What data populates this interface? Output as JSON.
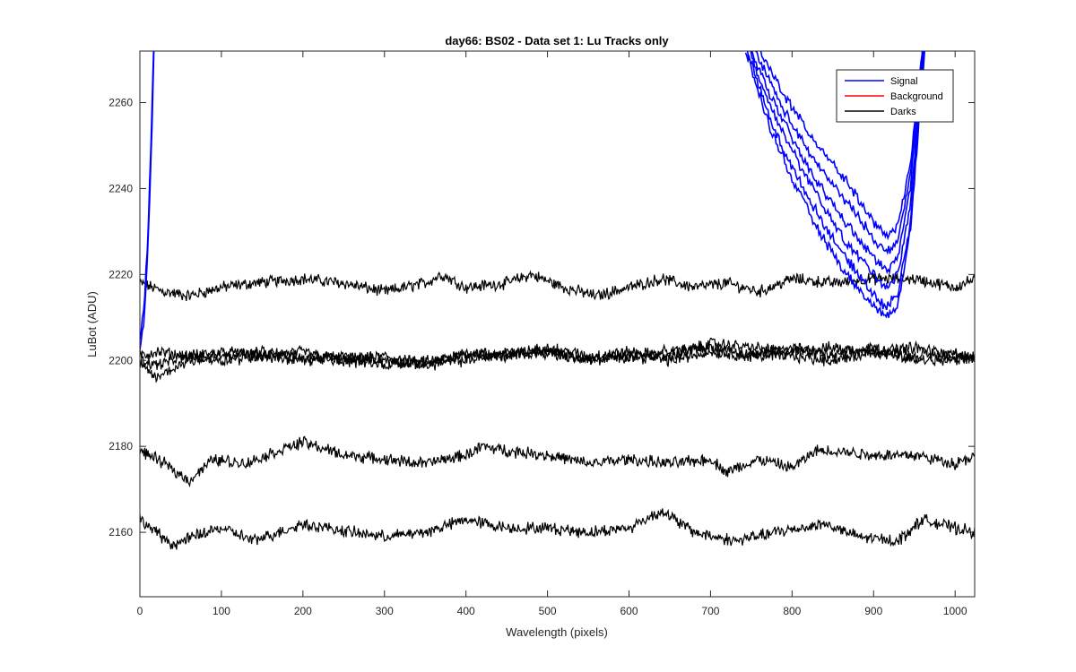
{
  "chart_data": {
    "type": "line",
    "title": "day66: BS02 - Data set 1: Lu Tracks only",
    "xlabel": "Wavelength (pixels)",
    "ylabel": "LuBot (ADU)",
    "xlim": [
      0,
      1024
    ],
    "ylim": [
      2145,
      2272
    ],
    "xticks": [
      0,
      100,
      200,
      300,
      400,
      500,
      600,
      700,
      800,
      900,
      1000
    ],
    "yticks": [
      2160,
      2180,
      2200,
      2220,
      2240,
      2260
    ],
    "grid": false,
    "legend_position": "top-right",
    "legend": [
      {
        "label": "Signal",
        "color": "#0000ff"
      },
      {
        "label": "Background",
        "color": "#ff0000"
      },
      {
        "label": "Darks",
        "color": "#000000"
      }
    ],
    "series": [
      {
        "group": "Darks",
        "color": "#000000",
        "x": [
          0,
          30,
          60,
          100,
          140,
          200,
          250,
          300,
          350,
          370,
          400,
          450,
          480,
          520,
          560,
          600,
          640,
          680,
          720,
          760,
          800,
          850,
          900,
          950,
          1000,
          1024
        ],
        "y": [
          2218,
          2216,
          2215,
          2217,
          2218,
          2219,
          2218,
          2216,
          2218,
          2220,
          2217,
          2218,
          2220,
          2217,
          2215,
          2217,
          2219,
          2217,
          2218,
          2216,
          2219,
          2218,
          2219,
          2219,
          2217,
          2219
        ]
      },
      {
        "group": "Darks",
        "color": "#000000",
        "x": [
          0,
          20,
          60,
          100,
          150,
          200,
          250,
          300,
          350,
          400,
          450,
          500,
          550,
          600,
          650,
          700,
          750,
          800,
          850,
          900,
          950,
          1000,
          1024
        ],
        "y": [
          2201,
          2202,
          2201,
          2202,
          2201,
          2202,
          2200,
          2201,
          2199,
          2202,
          2201,
          2203,
          2201,
          2202,
          2201,
          2204,
          2203,
          2202,
          2203,
          2202,
          2203,
          2201,
          2201
        ]
      },
      {
        "group": "Darks",
        "color": "#000000",
        "x": [
          0,
          20,
          60,
          100,
          150,
          200,
          250,
          300,
          350,
          400,
          450,
          500,
          550,
          600,
          650,
          700,
          750,
          800,
          850,
          900,
          950,
          1000,
          1024
        ],
        "y": [
          2200,
          2199,
          2201,
          2200,
          2201,
          2200,
          2201,
          2200,
          2199,
          2200,
          2202,
          2202,
          2200,
          2201,
          2200,
          2202,
          2201,
          2203,
          2201,
          2203,
          2201,
          2202,
          2200
        ]
      },
      {
        "group": "Darks",
        "color": "#000000",
        "x": [
          0,
          20,
          60,
          100,
          150,
          200,
          250,
          300,
          350,
          400,
          450,
          500,
          550,
          600,
          650,
          700,
          750,
          800,
          850,
          900,
          950,
          1000,
          1024
        ],
        "y": [
          2199,
          2196,
          2200,
          2201,
          2202,
          2201,
          2200,
          2199,
          2200,
          2201,
          2201,
          2202,
          2200,
          2201,
          2202,
          2203,
          2201,
          2201,
          2200,
          2202,
          2200,
          2200,
          2201
        ]
      },
      {
        "group": "Darks",
        "color": "#000000",
        "x": [
          0,
          30,
          60,
          90,
          130,
          170,
          200,
          250,
          300,
          350,
          400,
          420,
          450,
          500,
          550,
          600,
          650,
          700,
          720,
          760,
          800,
          830,
          850,
          900,
          950,
          1000,
          1024
        ],
        "y": [
          2179,
          2176,
          2172,
          2177,
          2176,
          2179,
          2181,
          2178,
          2177,
          2176,
          2178,
          2180,
          2179,
          2178,
          2176,
          2177,
          2176,
          2177,
          2174,
          2177,
          2175,
          2179,
          2179,
          2178,
          2178,
          2176,
          2178
        ]
      },
      {
        "group": "Darks",
        "color": "#000000",
        "x": [
          0,
          40,
          80,
          100,
          140,
          200,
          260,
          300,
          350,
          400,
          450,
          500,
          550,
          600,
          640,
          680,
          730,
          780,
          840,
          880,
          930,
          960,
          1000,
          1024
        ],
        "y": [
          2163,
          2157,
          2160,
          2161,
          2158,
          2162,
          2160,
          2159,
          2160,
          2163,
          2161,
          2161,
          2160,
          2161,
          2165,
          2160,
          2158,
          2160,
          2162,
          2159,
          2158,
          2163,
          2161,
          2160
        ]
      },
      {
        "group": "Signal",
        "color": "#0000ff",
        "x": [
          0,
          5,
          10,
          15,
          18
        ],
        "y": [
          2204,
          2212,
          2230,
          2260,
          2280
        ]
      },
      {
        "group": "Signal",
        "color": "#0000ff",
        "x": [
          0,
          5,
          10,
          15,
          18
        ],
        "y": [
          2202,
          2209,
          2226,
          2255,
          2278
        ]
      },
      {
        "group": "Signal",
        "color": "#0000ff",
        "x": [
          760,
          790,
          820,
          850,
          880,
          900,
          915,
          930,
          945,
          960,
          975
        ],
        "y": [
          2272,
          2262,
          2253,
          2246,
          2238,
          2232,
          2229,
          2231,
          2246,
          2272,
          2300
        ]
      },
      {
        "group": "Signal",
        "color": "#0000ff",
        "x": [
          755,
          785,
          815,
          845,
          875,
          898,
          915,
          930,
          945,
          960,
          975
        ],
        "y": [
          2272,
          2260,
          2250,
          2242,
          2235,
          2229,
          2225,
          2228,
          2243,
          2272,
          2300
        ]
      },
      {
        "group": "Signal",
        "color": "#0000ff",
        "x": [
          750,
          780,
          810,
          840,
          870,
          895,
          915,
          930,
          945,
          960,
          975
        ],
        "y": [
          2272,
          2259,
          2248,
          2239,
          2231,
          2225,
          2221,
          2224,
          2240,
          2272,
          2300
        ]
      },
      {
        "group": "Signal",
        "color": "#0000ff",
        "x": [
          748,
          778,
          808,
          838,
          868,
          892,
          915,
          930,
          945,
          960,
          975
        ],
        "y": [
          2272,
          2257,
          2246,
          2236,
          2227,
          2222,
          2217,
          2220,
          2236,
          2270,
          2300
        ]
      },
      {
        "group": "Signal",
        "color": "#0000ff",
        "x": [
          745,
          775,
          805,
          835,
          865,
          890,
          915,
          930,
          945,
          960,
          975
        ],
        "y": [
          2272,
          2255,
          2243,
          2233,
          2224,
          2218,
          2212,
          2216,
          2232,
          2268,
          2300
        ]
      },
      {
        "group": "Signal",
        "color": "#0000ff",
        "x": [
          743,
          773,
          803,
          833,
          863,
          888,
          915,
          930,
          945,
          960,
          975
        ],
        "y": [
          2272,
          2254,
          2241,
          2230,
          2221,
          2215,
          2210,
          2213,
          2230,
          2266,
          2300
        ]
      }
    ]
  }
}
